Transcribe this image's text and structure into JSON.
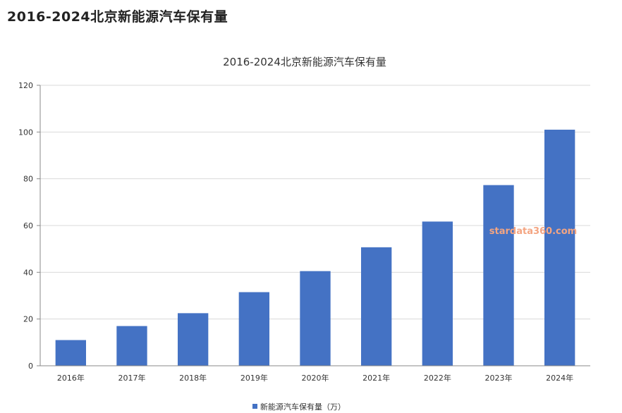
{
  "page": {
    "title": "2016-2024北京新能源汽车保有量",
    "watermark": "stardata360.com"
  },
  "colors": {
    "bar": "#4472C4",
    "grid": "#d9d9d9",
    "axis": "#888888",
    "watermark": "#F4A582"
  },
  "chart_data": {
    "type": "bar",
    "title": "2016-2024北京新能源汽车保有量",
    "categories": [
      "2016年",
      "2017年",
      "2018年",
      "2019年",
      "2020年",
      "2021年",
      "2022年",
      "2023年",
      "2024年"
    ],
    "series": [
      {
        "name": "新能源汽车保有量（万）",
        "values": [
          11,
          17,
          22.5,
          31.5,
          40.5,
          50.7,
          61.7,
          77.3,
          101
        ]
      }
    ],
    "yticks": [
      0,
      20,
      40,
      60,
      80,
      100,
      120
    ],
    "ylim": [
      0,
      120
    ],
    "grid": true,
    "legend": "bottom"
  }
}
